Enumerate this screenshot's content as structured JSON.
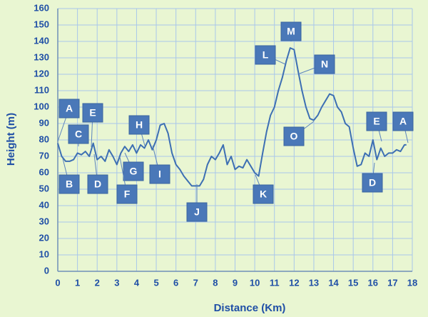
{
  "chart_data": {
    "type": "line",
    "x_label": "Distance  (Km)",
    "y_label": "Height (m)",
    "x": [
      0,
      0.2,
      0.4,
      0.6,
      0.8,
      1.0,
      1.2,
      1.4,
      1.6,
      1.8,
      2.0,
      2.2,
      2.4,
      2.6,
      2.8,
      3.0,
      3.2,
      3.4,
      3.6,
      3.8,
      4.0,
      4.2,
      4.4,
      4.6,
      4.8,
      5.0,
      5.2,
      5.4,
      5.6,
      5.8,
      6.0,
      6.2,
      6.4,
      6.6,
      6.8,
      7.0,
      7.2,
      7.4,
      7.6,
      7.8,
      8.0,
      8.2,
      8.4,
      8.6,
      8.8,
      9.0,
      9.2,
      9.4,
      9.6,
      9.8,
      10.0,
      10.2,
      10.4,
      10.6,
      10.8,
      11.0,
      11.2,
      11.4,
      11.6,
      11.8,
      12.0,
      12.2,
      12.4,
      12.6,
      12.8,
      13.0,
      13.2,
      13.4,
      13.6,
      13.8,
      14.0,
      14.2,
      14.4,
      14.6,
      14.8,
      15.0,
      15.2,
      15.4,
      15.6,
      15.8,
      16.0,
      16.2,
      16.4,
      16.6,
      16.8,
      17.0,
      17.2,
      17.4,
      17.6,
      17.7
    ],
    "values": [
      78,
      70,
      67,
      67,
      68,
      72,
      71,
      73,
      70,
      78,
      68,
      70,
      67,
      74,
      70,
      65,
      72,
      76,
      73,
      77,
      72,
      77,
      75,
      80,
      74,
      80,
      89,
      90,
      84,
      72,
      65,
      62,
      58,
      55,
      52,
      52,
      52,
      56,
      65,
      70,
      68,
      72,
      77,
      65,
      70,
      62,
      64,
      63,
      68,
      64,
      60,
      58,
      72,
      85,
      95,
      100,
      110,
      118,
      128,
      136,
      135,
      122,
      110,
      100,
      93,
      92,
      95,
      100,
      104,
      108,
      107,
      100,
      97,
      90,
      88,
      75,
      64,
      65,
      72,
      70,
      80,
      68,
      75,
      70,
      72,
      72,
      74,
      73,
      77,
      77
    ],
    "color": "#3d6fb3",
    "annotations": [
      "A",
      "B",
      "C",
      "E",
      "D",
      "H",
      "G",
      "F",
      "I",
      "J",
      "K",
      "L",
      "M",
      "N",
      "O",
      "E",
      "A",
      "D"
    ],
    "xlim": [
      0,
      18
    ],
    "xticks": [
      0,
      1,
      2,
      3,
      4,
      5,
      6,
      7,
      8,
      9,
      10,
      11,
      12,
      13,
      14,
      15,
      16,
      17,
      18
    ],
    "ylim": [
      0,
      160
    ],
    "yticks": [
      0,
      10,
      20,
      30,
      40,
      50,
      60,
      70,
      80,
      90,
      100,
      110,
      120,
      130,
      140,
      150,
      160
    ],
    "grid": true
  }
}
